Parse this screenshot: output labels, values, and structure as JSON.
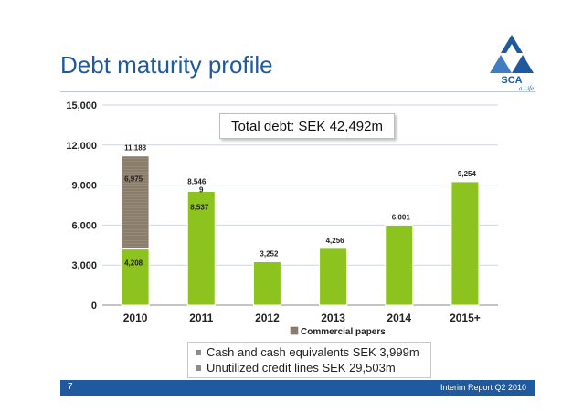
{
  "title": "Debt maturity profile",
  "logo": {
    "name": "SCA",
    "tagline": "a Life"
  },
  "total_debt": "Total debt: SEK 42,492m",
  "notes": [
    "Cash and cash equivalents SEK 3,999m",
    "Unutilized credit lines SEK 29,503m"
  ],
  "footer": {
    "page": "7",
    "text": "Interim Report Q2 2010"
  },
  "colors": {
    "brand": "#1f5a9e",
    "bar": "#8cc31e",
    "commercial_papers": "#8b7d6b"
  },
  "chart_data": {
    "type": "bar",
    "categories": [
      "2010",
      "2011",
      "2012",
      "2013",
      "2014",
      "2015+"
    ],
    "y_ticks": [
      "0",
      "3,000",
      "6,000",
      "9,000",
      "12,000",
      "15,000"
    ],
    "ylim": [
      0,
      15000
    ],
    "grid": true,
    "legend_position": "bottom",
    "series": [
      {
        "values": [
          4208,
          8537,
          3252,
          4256,
          6001,
          9254
        ]
      },
      {
        "name": "Commercial papers",
        "values": [
          6975,
          9,
          0,
          0,
          0,
          0
        ]
      }
    ],
    "totals": [
      11183,
      8546,
      null,
      null,
      null,
      null
    ],
    "data_labels": {
      "base": [
        "4,208",
        "8,537",
        "3,252",
        "4,256",
        "6,001",
        "9,254"
      ],
      "commercial_papers": [
        "6,975",
        "9",
        "",
        "",
        "",
        ""
      ],
      "totals": [
        "11,183",
        "8,546",
        "",
        "",
        "",
        ""
      ]
    }
  }
}
